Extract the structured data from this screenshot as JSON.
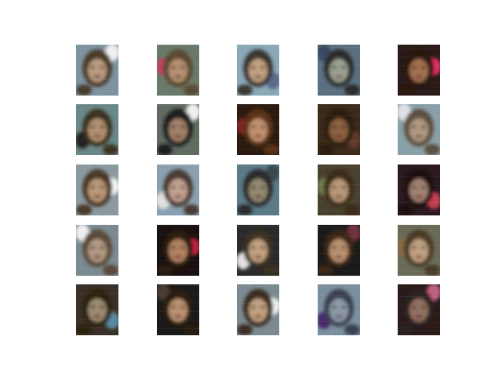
{
  "figure": {
    "rows": 5,
    "cols": 5,
    "samples": [
      {
        "bg": "#7d93a0",
        "hair": "#4a3a2a",
        "skin": "#b89a80",
        "accent": "#f0f0f0"
      },
      {
        "bg": "#6a7a6a",
        "hair": "#5a4a30",
        "skin": "#b49070",
        "accent": "#c04060"
      },
      {
        "bg": "#8aa8b8",
        "hair": "#3a3530",
        "skin": "#c0a080",
        "accent": "#5a6a8a"
      },
      {
        "bg": "#5a7080",
        "hair": "#2a2a2a",
        "skin": "#9aa090",
        "accent": "#3a4a60"
      },
      {
        "bg": "#2a1a1a",
        "hair": "#2a1810",
        "skin": "#a07050",
        "accent": "#e03060"
      },
      {
        "bg": "#6a8888",
        "hair": "#3a3020",
        "skin": "#b09070",
        "accent": "#202020"
      },
      {
        "bg": "#606a60",
        "hair": "#1a1a1a",
        "skin": "#a08068",
        "accent": "#f0f0f0"
      },
      {
        "bg": "#2a1a10",
        "hair": "#5a3018",
        "skin": "#c09070",
        "accent": "#802020"
      },
      {
        "bg": "#3a2a1a",
        "hair": "#2a1a10",
        "skin": "#8a6040",
        "accent": "#603a2a"
      },
      {
        "bg": "#8aa0a8",
        "hair": "#5a5040",
        "skin": "#b09880",
        "accent": "#e0e0e8"
      },
      {
        "bg": "#8a9aa0",
        "hair": "#4a3828",
        "skin": "#b89878",
        "accent": "#f4f4f4"
      },
      {
        "bg": "#8aa0b0",
        "hair": "#4a3a30",
        "skin": "#c0a090",
        "accent": "#e0e0e0"
      },
      {
        "bg": "#5a7a88",
        "hair": "#2a2a2a",
        "skin": "#908870",
        "accent": "#3a4a50"
      },
      {
        "bg": "#4a4030",
        "hair": "#3a2a18",
        "skin": "#b89878",
        "accent": "#6a7a50"
      },
      {
        "bg": "#2a1a20",
        "hair": "#1a1010",
        "skin": "#a08070",
        "accent": "#c04050"
      },
      {
        "bg": "#7a8a90",
        "hair": "#5a4a3a",
        "skin": "#b09880",
        "accent": "#f0f0f0"
      },
      {
        "bg": "#1a1010",
        "hair": "#2a1a10",
        "skin": "#b08060",
        "accent": "#c02040"
      },
      {
        "bg": "#2a2a2a",
        "hair": "#3a3020",
        "skin": "#c0a080",
        "accent": "#e0e0e0"
      },
      {
        "bg": "#1a1a1a",
        "hair": "#3a2818",
        "skin": "#b89070",
        "accent": "#703040"
      },
      {
        "bg": "#6a6a58",
        "hair": "#4a3a28",
        "skin": "#c0a080",
        "accent": "#8a6a40"
      },
      {
        "bg": "#3a3028",
        "hair": "#2a2010",
        "skin": "#9a8a70",
        "accent": "#5a8aa0"
      },
      {
        "bg": "#1a1a1a",
        "hair": "#2a1a10",
        "skin": "#b89070",
        "accent": "#4a3a30"
      },
      {
        "bg": "#7a8a90",
        "hair": "#3a2a20",
        "skin": "#c0a080",
        "accent": "#f0f0f0"
      },
      {
        "bg": "#7a90a0",
        "hair": "#3a4050",
        "skin": "#8a9aa8",
        "accent": "#4a2a6a"
      },
      {
        "bg": "#2a1a1a",
        "hair": "#2a2020",
        "skin": "#907060",
        "accent": "#c06080"
      }
    ]
  }
}
